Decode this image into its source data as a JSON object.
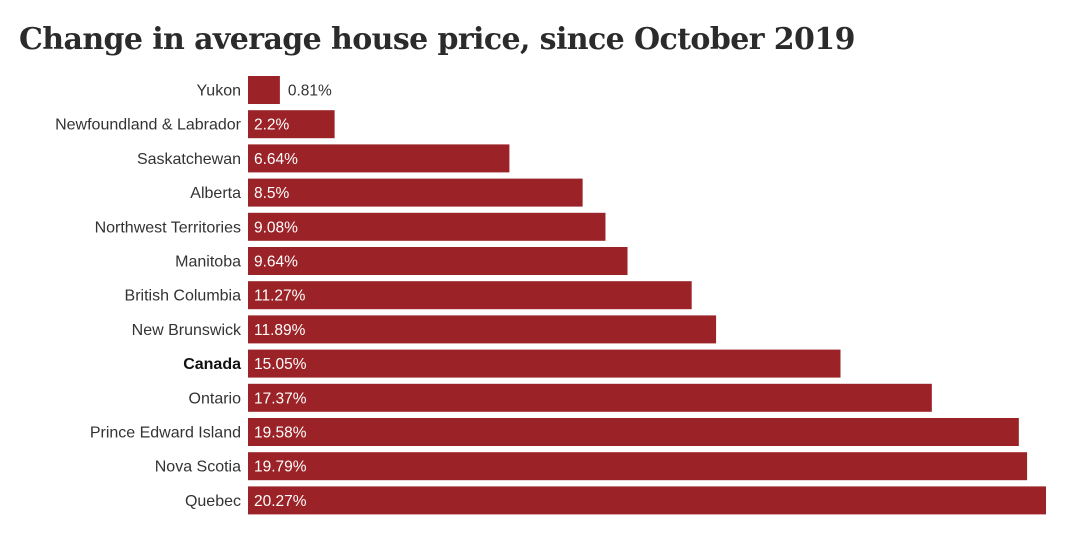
{
  "colors": {
    "bar": "#9b2226",
    "text": "#333333"
  },
  "chart_data": {
    "type": "bar",
    "orientation": "horizontal",
    "title": "Change in average house price, since October 2019",
    "categories": [
      "Yukon",
      "Newfoundland & Labrador",
      "Saskatchewan",
      "Alberta",
      "Northwest Territories",
      "Manitoba",
      "British Columbia",
      "New Brunswick",
      "Canada",
      "Ontario",
      "Prince Edward Island",
      "Nova Scotia",
      "Quebec"
    ],
    "values": [
      0.81,
      2.2,
      6.64,
      8.5,
      9.08,
      9.64,
      11.27,
      11.89,
      15.05,
      17.37,
      19.58,
      19.79,
      20.27
    ],
    "value_labels": [
      "0.81%",
      "2.2%",
      "6.64%",
      "8.5%",
      "9.08%",
      "9.64%",
      "11.27%",
      "11.89%",
      "15.05%",
      "17.37%",
      "19.58%",
      "19.79%",
      "20.27%"
    ],
    "emphasized_category": "Canada",
    "xlim": [
      0,
      20.27
    ],
    "grid": false,
    "legend": "none"
  }
}
